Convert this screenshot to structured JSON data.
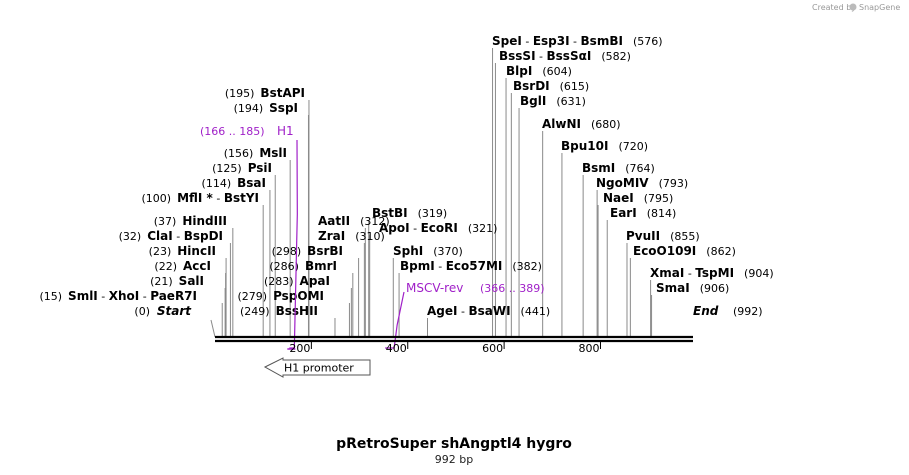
{
  "credit": "Created by",
  "brand": "SnapGene",
  "title": "pRetroSuper shAngptl4 hygro",
  "subtitle": "992 bp",
  "map_length": 992,
  "start_label": "Start",
  "start_pos": "(0)",
  "end_label": "End",
  "end_pos": "(992)",
  "ticks": [
    {
      "value": 200,
      "label": "200"
    },
    {
      "value": 400,
      "label": "400"
    },
    {
      "value": 600,
      "label": "600"
    },
    {
      "value": 800,
      "label": "800"
    }
  ],
  "features": [
    {
      "name": "H1",
      "range": "(166 .. 185)",
      "bp": 175
    },
    {
      "name": "MSCV-rev",
      "range": "(366 .. 389)",
      "bp": 378
    }
  ],
  "promoter": {
    "label": "H1 promoter",
    "direction": "left"
  },
  "sites_left": [
    {
      "pos": "(195)",
      "names": [
        "BstAPI"
      ],
      "bp": 195
    },
    {
      "pos": "(194)",
      "names": [
        "SspI"
      ],
      "bp": 194
    },
    {
      "pos": "(156)",
      "names": [
        "MslI"
      ],
      "bp": 156
    },
    {
      "pos": "(125)",
      "names": [
        "PsiI"
      ],
      "bp": 125
    },
    {
      "pos": "(114)",
      "names": [
        "BsaI"
      ],
      "bp": 114
    },
    {
      "pos": "(100)",
      "names": [
        "MflI *",
        "BstYI"
      ],
      "bp": 100
    },
    {
      "pos": "(37)",
      "names": [
        "HindIII"
      ],
      "bp": 37
    },
    {
      "pos": "(32)",
      "names": [
        "ClaI",
        "BspDI"
      ],
      "bp": 32
    },
    {
      "pos": "(23)",
      "names": [
        "HincII"
      ],
      "bp": 23
    },
    {
      "pos": "(22)",
      "names": [
        "AccI"
      ],
      "bp": 22
    },
    {
      "pos": "(21)",
      "names": [
        "SalI"
      ],
      "bp": 21
    },
    {
      "pos": "(15)",
      "names": [
        "SmlI",
        "XhoI",
        "PaeR7I"
      ],
      "bp": 15
    },
    {
      "pos": "(279)",
      "names": [
        "PspOMI"
      ],
      "bp": 279
    },
    {
      "pos": "(249)",
      "names": [
        "BssHII"
      ],
      "bp": 249
    },
    {
      "pos": "(298)",
      "names": [
        "BsrBI"
      ],
      "bp": 298
    },
    {
      "pos": "(286)",
      "names": [
        "BmrI"
      ],
      "bp": 286
    },
    {
      "pos": "(283)",
      "names": [
        "ApaI"
      ],
      "bp": 283
    }
  ],
  "sites_mid": [
    {
      "pos": "(312)",
      "names": [
        "AatII"
      ],
      "bp": 312
    },
    {
      "pos": "(310)",
      "names": [
        "ZraI"
      ],
      "bp": 310
    },
    {
      "pos": "(319)",
      "names": [
        "BstBI"
      ],
      "bp": 319
    },
    {
      "pos": "(321)",
      "names": [
        "ApoI",
        "EcoRI"
      ],
      "bp": 321
    },
    {
      "pos": "(370)",
      "names": [
        "SphI"
      ],
      "bp": 370
    },
    {
      "pos": "(382)",
      "names": [
        "BpmI",
        "Eco57MI"
      ],
      "bp": 382
    },
    {
      "pos": "(441)",
      "names": [
        "AgeI",
        "BsaWI"
      ],
      "bp": 441
    }
  ],
  "sites_right": [
    {
      "pos": "(576)",
      "names": [
        "SpeI",
        "Esp3I",
        "BsmBI"
      ],
      "bp": 576
    },
    {
      "pos": "(582)",
      "names": [
        "BssSI",
        "BssSαI"
      ],
      "bp": 582
    },
    {
      "pos": "(604)",
      "names": [
        "BlpI"
      ],
      "bp": 604
    },
    {
      "pos": "(615)",
      "names": [
        "BsrDI"
      ],
      "bp": 615
    },
    {
      "pos": "(631)",
      "names": [
        "BglI"
      ],
      "bp": 631
    },
    {
      "pos": "(680)",
      "names": [
        "AlwNI"
      ],
      "bp": 680
    },
    {
      "pos": "(720)",
      "names": [
        "Bpu10I"
      ],
      "bp": 720
    },
    {
      "pos": "(764)",
      "names": [
        "BsmI"
      ],
      "bp": 764
    },
    {
      "pos": "(793)",
      "names": [
        "NgoMIV"
      ],
      "bp": 793
    },
    {
      "pos": "(795)",
      "names": [
        "NaeI"
      ],
      "bp": 795
    },
    {
      "pos": "(814)",
      "names": [
        "EarI"
      ],
      "bp": 814
    },
    {
      "pos": "(855)",
      "names": [
        "PvuII"
      ],
      "bp": 855
    },
    {
      "pos": "(862)",
      "names": [
        "EcoO109I"
      ],
      "bp": 862
    },
    {
      "pos": "(904)",
      "names": [
        "XmaI",
        "TspMI"
      ],
      "bp": 904
    },
    {
      "pos": "(906)",
      "names": [
        "SmaI"
      ],
      "bp": 906
    }
  ]
}
